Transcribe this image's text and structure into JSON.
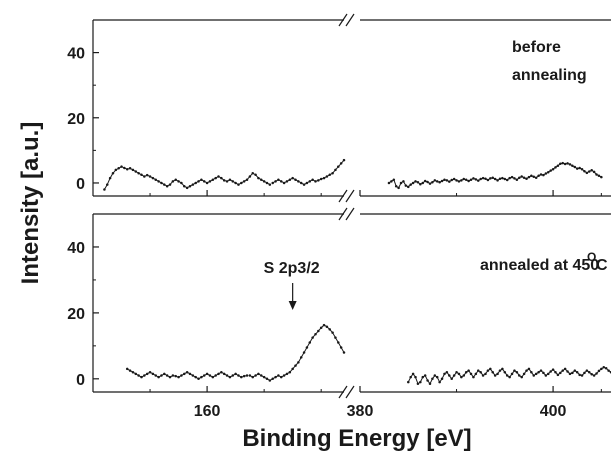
{
  "chart_data": {
    "type": "scatter",
    "ylabel": "Intensity [a.u.]",
    "xlabel": "Binding Energy [eV]",
    "x_segments": [
      {
        "range": [
          150,
          172
        ]
      },
      {
        "range": [
          380,
          406
        ]
      }
    ],
    "x_ticks": [
      160,
      380,
      400
    ],
    "y_ticks": [
      0,
      20,
      40
    ],
    "ylim": [
      -4,
      50
    ],
    "grid": false,
    "panels": [
      {
        "annotation_lines": [
          "before",
          "annealing"
        ],
        "segments": [
          {
            "x_start": 151.0,
            "x_end": 165.5,
            "step": 0.25,
            "y": [
              -2,
              -0.5,
              1.5,
              3,
              4,
              4.5,
              5,
              4.6,
              4.2,
              4.5,
              4,
              3.5,
              3,
              2.5,
              2,
              2.4,
              2,
              1.5,
              1,
              0.5,
              0,
              -0.5,
              -1,
              -0.5,
              0.5,
              1,
              0.5,
              0,
              -1,
              -1.5,
              -1,
              -0.5,
              0,
              0.5,
              1,
              0.5,
              0,
              0.5,
              1,
              1.5,
              2,
              1.5,
              0.8,
              0.5,
              1,
              0.5,
              0,
              -0.5,
              0,
              0.5,
              1,
              2,
              3,
              2.5,
              1.5,
              1,
              0.5,
              0,
              -0.5,
              -1
            ]
          },
          {
            "x_start": 165.75,
            "x_end": 172.0,
            "step": 0.25,
            "y": [
              0,
              0.5,
              1,
              0.5,
              0,
              0.5,
              1,
              1.5,
              1,
              0.5,
              0,
              -0.5,
              0,
              0.5,
              1,
              0.5,
              0.8,
              1.2,
              1.5,
              2,
              2.5,
              3,
              4,
              5,
              6,
              7,
              6.5,
              6.8,
              5.5,
              5,
              4,
              3.5,
              3,
              2.5,
              2,
              2.2,
              1.8,
              1,
              0.5,
              0,
              -0.5,
              -1,
              -1.5,
              -1.8,
              -1,
              -0.5,
              0,
              0.2,
              -0.3,
              -0.5,
              0,
              0.5,
              1.5,
              2,
              2.5,
              2,
              1,
              0.5,
              0,
              -0.5,
              -1,
              -0.5,
              0
            ]
          },
          {
            "x_start": 383.0,
            "x_end": 405.0,
            "step": 0.25,
            "y": [
              0,
              0.5,
              1,
              -1,
              -1.5,
              0,
              0.5,
              -0.8,
              -1.2,
              -0.5,
              0,
              0.5,
              0.2,
              -0.4,
              0,
              0.6,
              0.3,
              -0.2,
              0.2,
              0.8,
              0.5,
              0.2,
              0.6,
              1,
              0.8,
              0.4,
              0.9,
              1.2,
              0.8,
              0.5,
              0.8,
              1.2,
              1,
              0.6,
              1,
              1.4,
              1.1,
              0.7,
              1.2,
              1.5,
              1.3,
              0.9,
              1.4,
              1.6,
              1.2,
              0.8,
              1.3,
              1.5,
              1.2,
              0.9,
              1.5,
              1.8,
              1.4,
              1,
              1.6,
              2,
              1.6,
              1.3,
              1.8,
              2.2,
              1.9,
              1.6,
              2.2,
              2.6,
              2.4,
              2.9,
              3.3,
              3.8,
              4.2,
              4.8,
              5.3,
              5.9,
              6.1,
              5.8,
              6,
              5.7,
              5.3,
              4.9,
              4.4,
              4.6,
              4.2,
              3.6,
              3.1,
              3.5,
              3.9,
              3.4,
              2.6,
              2.2,
              1.8,
              1.4,
              1,
              0.6,
              0.3,
              0.7,
              1.1,
              0.9,
              0.6,
              0.3,
              0.7,
              1.1,
              0.8,
              0.5,
              1,
              1.3,
              0.9,
              0.4,
              0.6,
              0.9,
              0.5,
              0.2,
              0.6,
              0.9,
              0.4
            ]
          }
        ]
      },
      {
        "annotation_lines": [
          "annealed at 450",
          "O",
          "C"
        ],
        "peak_label": "S 2p3/2",
        "peak_x": 167.5,
        "segments": [
          {
            "x_start": 153.0,
            "x_end": 163.5,
            "step": 0.25,
            "y": [
              3,
              2.5,
              2,
              1.5,
              1,
              0.5,
              1,
              1.5,
              2,
              1.5,
              1,
              0.5,
              1,
              1.5,
              1,
              0.5,
              1,
              0.8,
              0.5,
              1,
              1.5,
              2,
              1.5,
              1,
              0.5,
              0,
              0.5,
              1,
              1.5,
              1,
              0.5,
              1,
              1.5,
              2,
              1.5,
              1,
              0.5,
              1,
              1.5,
              1,
              0.5,
              0.8,
              1
            ]
          },
          {
            "x_start": 163.75,
            "x_end": 172.0,
            "step": 0.25,
            "y": [
              1,
              0.5,
              1,
              1.5,
              1,
              0.5,
              0,
              -0.5,
              0,
              0.5,
              1,
              0.5,
              1,
              1.5,
              2,
              3,
              4,
              5,
              6.5,
              8,
              9.5,
              11,
              12.5,
              13.5,
              14.5,
              15.5,
              16.3,
              15.8,
              15,
              14,
              12.5,
              11,
              9.5,
              8,
              6.5,
              5,
              4,
              3,
              2.5,
              2,
              1.5,
              1,
              0.5,
              1,
              1.5,
              2,
              1.5,
              1,
              0.5,
              1,
              1.5,
              1,
              0.5,
              1,
              1.5,
              2,
              1.5,
              1,
              0.5,
              1,
              1.5,
              2.5,
              3.5,
              4,
              3.5,
              2.5,
              1.5,
              1
            ]
          },
          {
            "x_start": 385.0,
            "x_end": 406.0,
            "step": 0.25,
            "y": [
              -1,
              0.5,
              1.5,
              0.5,
              -1.5,
              -1,
              0.5,
              1,
              -0.5,
              -1.5,
              0,
              1,
              0.5,
              -1,
              0,
              1.5,
              2,
              1,
              0,
              1,
              2,
              1.5,
              0.5,
              1,
              2,
              2.5,
              1.5,
              0.5,
              1.5,
              2.5,
              2,
              1,
              1.5,
              2.5,
              3,
              2,
              1,
              1.5,
              2.5,
              3,
              2,
              1,
              0.5,
              1.5,
              2.5,
              2,
              1,
              0.5,
              1.5,
              2.5,
              3,
              2,
              1,
              1.5,
              2,
              2.5,
              1.8,
              1,
              1.5,
              2.2,
              2.8,
              2,
              1.2,
              1.8,
              2.5,
              3,
              2.2,
              1.5,
              1.8,
              2.5,
              2,
              1.2,
              1,
              1.8,
              2.5,
              2,
              1.4,
              1,
              1.6,
              2.4,
              3,
              3.5,
              3.2,
              2.5,
              2,
              1.8,
              2.5,
              3.2,
              2.8,
              2,
              1.5,
              1.2,
              1.8,
              2.5,
              2,
              1.2,
              0.8,
              1.5,
              2.2,
              1.8,
              1,
              0.6,
              1.2,
              2,
              1.5,
              0.8,
              0.4,
              1,
              1.8,
              1.2,
              0.5,
              0,
              0.8,
              1.5,
              1,
              0.2,
              -0.5,
              0.5,
              1.2,
              0.6,
              0
            ]
          }
        ]
      }
    ]
  }
}
